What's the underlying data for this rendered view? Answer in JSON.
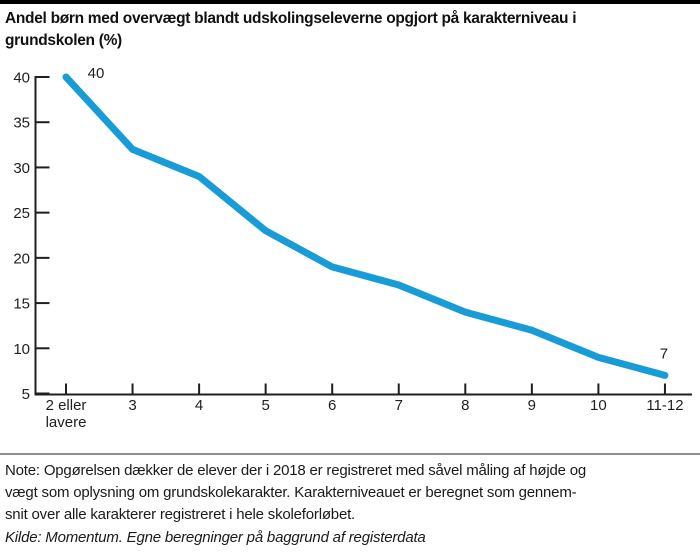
{
  "page": {
    "background": "#ffffff",
    "top_bar_color": "#000000",
    "divider_color": "#8f8f8f"
  },
  "title": {
    "lines": [
      "Andel børn med overvægt blandt udskolingseleverne opgjort på karakterniveau i",
      "grundskolen (%)"
    ]
  },
  "chart_data": {
    "type": "line",
    "title": "Andel børn med overvægt blandt udskolingseleverne opgjort på karakterniveau i grundskolen (%)",
    "categories": [
      "2 eller lavere",
      "3",
      "4",
      "5",
      "6",
      "7",
      "8",
      "9",
      "10",
      "11-12"
    ],
    "category_display": [
      [
        "2 eller",
        "lavere"
      ],
      [
        "3"
      ],
      [
        "4"
      ],
      [
        "5"
      ],
      [
        "6"
      ],
      [
        "7"
      ],
      [
        "8"
      ],
      [
        "9"
      ],
      [
        "10"
      ],
      [
        "11-12"
      ]
    ],
    "values": [
      40,
      32,
      29,
      23,
      19,
      17,
      14,
      12,
      9,
      7
    ],
    "first_point_label": "40",
    "last_point_label": "7",
    "xlabel": "",
    "ylabel": "",
    "ylim": [
      5,
      40
    ],
    "yticks": [
      5,
      10,
      15,
      20,
      25,
      30,
      35,
      40
    ],
    "grid": false,
    "legend": false,
    "line_color": "#189cd8",
    "axis_color": "#1f1f1f",
    "label_color": "#1f1f1f"
  },
  "note": {
    "lines": [
      "Note: Opgørelsen dækker de elever der i 2018 er registreret med såvel måling af højde og",
      "vægt som oplysning om grundskolekarakter. Karakterniveauet er beregnet som gennem-",
      "snit over alle karakterer registreret i hele skoleforløbet."
    ],
    "kilde": "Kilde: Momentum. Egne beregninger på baggrund af registerdata"
  }
}
